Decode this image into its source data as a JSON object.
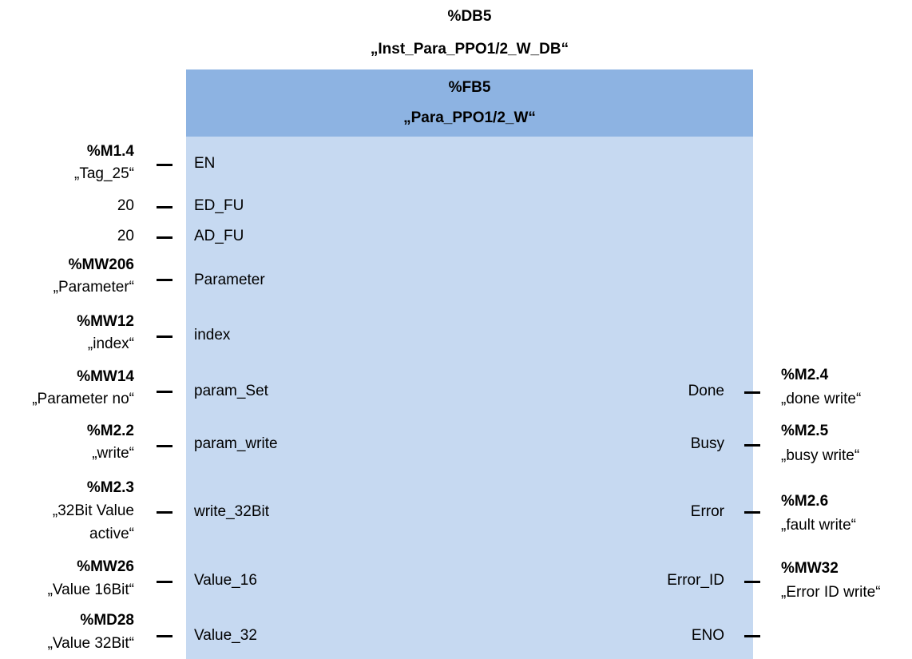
{
  "instance_db": {
    "address": "%DB5",
    "name": "„Inst_Para_PPO1/2_W_DB“"
  },
  "block": {
    "address": "%FB5",
    "name": "„Para_PPO1/2_W“"
  },
  "inputs": [
    {
      "pin": "EN",
      "address": "%M1.4",
      "symbol": "„Tag_25“"
    },
    {
      "pin": "ED_FU",
      "value": "20"
    },
    {
      "pin": "AD_FU",
      "value": "20"
    },
    {
      "pin": "Parameter",
      "address": "%MW206",
      "symbol": "„Parameter“"
    },
    {
      "pin": "index",
      "address": "%MW12",
      "symbol": "„index“"
    },
    {
      "pin": "param_Set",
      "address": "%MW14",
      "symbol": "„Parameter no“"
    },
    {
      "pin": "param_write",
      "address": "%M2.2",
      "symbol": "„write“"
    },
    {
      "pin": "write_32Bit",
      "address": "%M2.3",
      "symbol_line1": "„32Bit Value",
      "symbol_line2": "active“"
    },
    {
      "pin": "Value_16",
      "address": "%MW26",
      "symbol": "„Value 16Bit“"
    },
    {
      "pin": "Value_32",
      "address": "%MD28",
      "symbol": "„Value 32Bit“"
    }
  ],
  "outputs": [
    {
      "pin": "Done",
      "address": "%M2.4",
      "symbol": "„done write“"
    },
    {
      "pin": "Busy",
      "address": "%M2.5",
      "symbol": "„busy write“"
    },
    {
      "pin": "Error",
      "address": "%M2.6",
      "symbol": "„fault write“"
    },
    {
      "pin": "Error_ID",
      "address": "%MW32",
      "symbol": "„Error ID write“"
    },
    {
      "pin": "ENO"
    }
  ]
}
